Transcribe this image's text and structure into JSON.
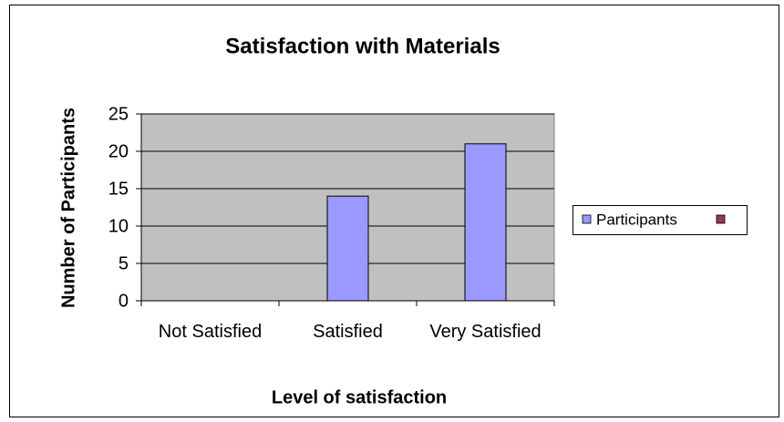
{
  "chart_data": {
    "type": "bar",
    "title": "Satisfaction with Materials",
    "x_label": "Level of satisfaction",
    "y_label": "Number of Participants",
    "categories": [
      "Not Satisfied",
      "Satisfied",
      "Very Satisfied"
    ],
    "series": [
      {
        "name": "Participants",
        "color": "#9999ff",
        "values": [
          0,
          14,
          21
        ]
      }
    ],
    "ylim": [
      0,
      25
    ],
    "yticks": [
      0,
      5,
      10,
      15,
      20,
      25
    ],
    "grid": true,
    "legend": "right",
    "plot_background": "#c0c0c0"
  }
}
